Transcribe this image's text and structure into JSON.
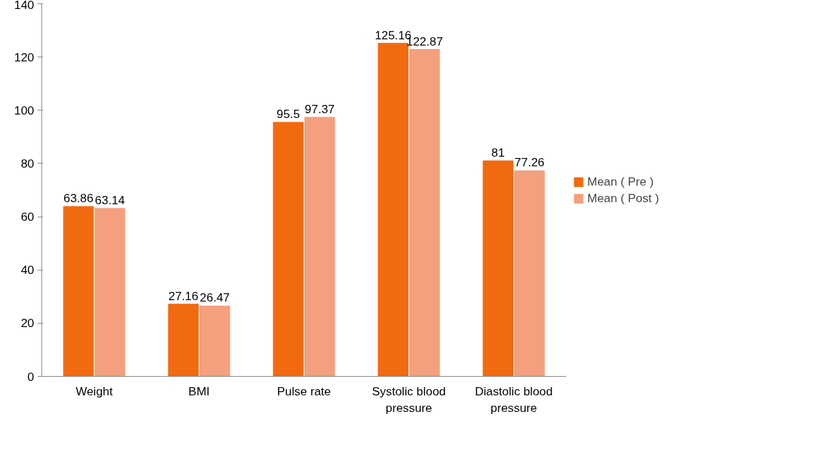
{
  "chart_data": {
    "type": "bar",
    "categories": [
      "Weight",
      "BMI",
      "Pulse rate",
      "Systolic blood pressure",
      "Diastolic blood pressure"
    ],
    "series": [
      {
        "name": "Mean ( Pre )",
        "color": "#f26a10",
        "values": [
          63.86,
          27.16,
          95.5,
          125.16,
          81
        ]
      },
      {
        "name": "Mean ( Post )",
        "color": "#f4a07e",
        "values": [
          63.14,
          26.47,
          97.37,
          122.87,
          77.26
        ]
      }
    ],
    "ylim": [
      0,
      140
    ],
    "yticks": [
      0,
      20,
      40,
      60,
      80,
      100,
      120,
      140
    ],
    "data_labels": true,
    "grid": false,
    "legend": "right"
  }
}
